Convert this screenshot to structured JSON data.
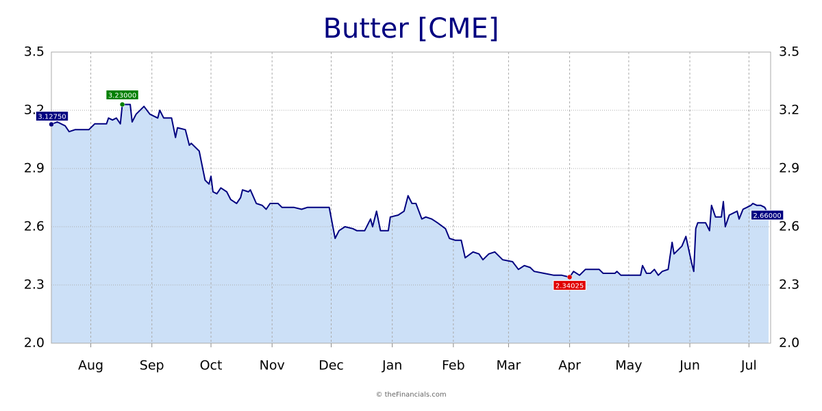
{
  "chart_data": {
    "type": "area",
    "title": "Butter [CME]",
    "source": "© theFinancials.com",
    "x": [
      0,
      3,
      7,
      9,
      12,
      15,
      19,
      22,
      26,
      28,
      29,
      31,
      33,
      35,
      36,
      40,
      41,
      43,
      47,
      50,
      54,
      55,
      57,
      61,
      63,
      64,
      68,
      70,
      71,
      75,
      77,
      78,
      80,
      81,
      82,
      84,
      86,
      89,
      91,
      94,
      96,
      97,
      100,
      101,
      104,
      107,
      109,
      111,
      115,
      117,
      120,
      123,
      127,
      130,
      136,
      141,
      144,
      146,
      149,
      153,
      155,
      159,
      162,
      163,
      165,
      167,
      171,
      172,
      176,
      179,
      181,
      183,
      185,
      188,
      190,
      193,
      196,
      200,
      202,
      205,
      208,
      210,
      214,
      217,
      219,
      222,
      225,
      229,
      234,
      237,
      240,
      243,
      245,
      250,
      255,
      259,
      263,
      265,
      268,
      271,
      275,
      278,
      280,
      283,
      286,
      287,
      289,
      292,
      294,
      299,
      300,
      302,
      304,
      306,
      308,
      310,
      313,
      315,
      316,
      320,
      322,
      325,
      326,
      327,
      328,
      332,
      334,
      335,
      337,
      340,
      341,
      342,
      344,
      348,
      349,
      351,
      353,
      355,
      356,
      358,
      360,
      362,
      364
    ],
    "series": [
      {
        "name": "Butter",
        "color": "#000080",
        "fill": "#cce0f7",
        "values": [
          3.1275,
          3.14,
          3.12,
          3.09,
          3.1,
          3.1,
          3.1,
          3.13,
          3.13,
          3.13,
          3.16,
          3.15,
          3.16,
          3.13,
          3.23,
          3.23,
          3.14,
          3.18,
          3.22,
          3.18,
          3.16,
          3.2,
          3.16,
          3.16,
          3.06,
          3.11,
          3.1,
          3.02,
          3.03,
          2.99,
          2.89,
          2.84,
          2.82,
          2.86,
          2.78,
          2.77,
          2.8,
          2.78,
          2.74,
          2.72,
          2.75,
          2.79,
          2.78,
          2.79,
          2.72,
          2.71,
          2.69,
          2.72,
          2.72,
          2.7,
          2.7,
          2.7,
          2.69,
          2.7,
          2.7,
          2.7,
          2.54,
          2.58,
          2.6,
          2.59,
          2.58,
          2.58,
          2.64,
          2.6,
          2.68,
          2.58,
          2.58,
          2.65,
          2.66,
          2.68,
          2.76,
          2.72,
          2.72,
          2.64,
          2.65,
          2.64,
          2.62,
          2.59,
          2.54,
          2.53,
          2.53,
          2.44,
          2.47,
          2.46,
          2.43,
          2.46,
          2.47,
          2.43,
          2.42,
          2.38,
          2.4,
          2.39,
          2.37,
          2.36,
          2.35,
          2.35,
          2.34025,
          2.37,
          2.35,
          2.38,
          2.38,
          2.38,
          2.36,
          2.36,
          2.36,
          2.37,
          2.35,
          2.35,
          2.35,
          2.35,
          2.4,
          2.36,
          2.36,
          2.38,
          2.35,
          2.37,
          2.38,
          2.52,
          2.46,
          2.5,
          2.55,
          2.41,
          2.37,
          2.59,
          2.62,
          2.62,
          2.58,
          2.71,
          2.65,
          2.65,
          2.73,
          2.6,
          2.66,
          2.68,
          2.64,
          2.69,
          2.7,
          2.71,
          2.72,
          2.71,
          2.71,
          2.7,
          2.66
        ]
      }
    ],
    "markers": [
      {
        "x": 0,
        "y": 3.1275,
        "label": "3.12750",
        "color": "#000080"
      },
      {
        "x": 36,
        "y": 3.23,
        "label": "3.23000",
        "color": "#008000"
      },
      {
        "x": 263,
        "y": 2.34025,
        "label": "2.34025",
        "color": "#e00000"
      },
      {
        "x": 364,
        "y": 2.66,
        "label": "2.66000",
        "color": "#000080"
      }
    ],
    "xlim": [
      0,
      365
    ],
    "xticks": [
      {
        "value": 20,
        "label": "Aug"
      },
      {
        "value": 51,
        "label": "Sep"
      },
      {
        "value": 81,
        "label": "Oct"
      },
      {
        "value": 112,
        "label": "Nov"
      },
      {
        "value": 142,
        "label": "Dec"
      },
      {
        "value": 173,
        "label": "Jan"
      },
      {
        "value": 204,
        "label": "Feb"
      },
      {
        "value": 232,
        "label": "Mar"
      },
      {
        "value": 263,
        "label": "Apr"
      },
      {
        "value": 293,
        "label": "May"
      },
      {
        "value": 324,
        "label": "Jun"
      },
      {
        "value": 354,
        "label": "Jul"
      }
    ],
    "ylim": [
      2.0,
      3.5
    ],
    "yticks": [
      {
        "value": 2.0,
        "label": "2.0"
      },
      2.3,
      2.6,
      2.9,
      3.2,
      3.5
    ],
    "grid": true
  }
}
